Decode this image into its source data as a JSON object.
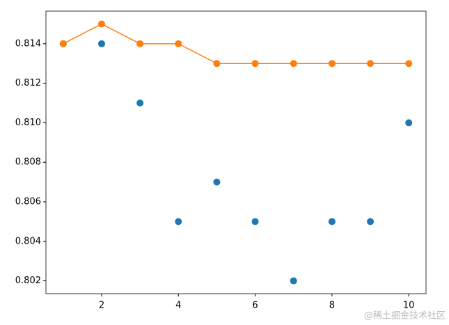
{
  "chart_data": {
    "type": "line",
    "x": [
      1,
      2,
      3,
      4,
      5,
      6,
      7,
      8,
      9,
      10
    ],
    "series": [
      {
        "color": "#1f77b4",
        "linestyle": "none",
        "values": [
          0.814,
          0.814,
          0.811,
          0.805,
          0.807,
          0.805,
          0.802,
          0.805,
          0.805,
          0.81
        ]
      },
      {
        "color": "#ff7f0e",
        "linestyle": "solid",
        "values": [
          0.814,
          0.815,
          0.814,
          0.814,
          0.813,
          0.813,
          0.813,
          0.813,
          0.813,
          0.813
        ]
      }
    ],
    "xlim": [
      0.55,
      10.45
    ],
    "xticks": [
      2,
      4,
      6,
      8,
      10
    ],
    "ylim": [
      0.80135,
      0.81565
    ],
    "yticks": [
      0.802,
      0.804,
      0.806,
      0.808,
      {
        "value": 0.81,
        "label": "0.810"
      },
      0.812,
      0.814
    ],
    "grid": false
  },
  "watermark": "@稀土掘金技术社区"
}
